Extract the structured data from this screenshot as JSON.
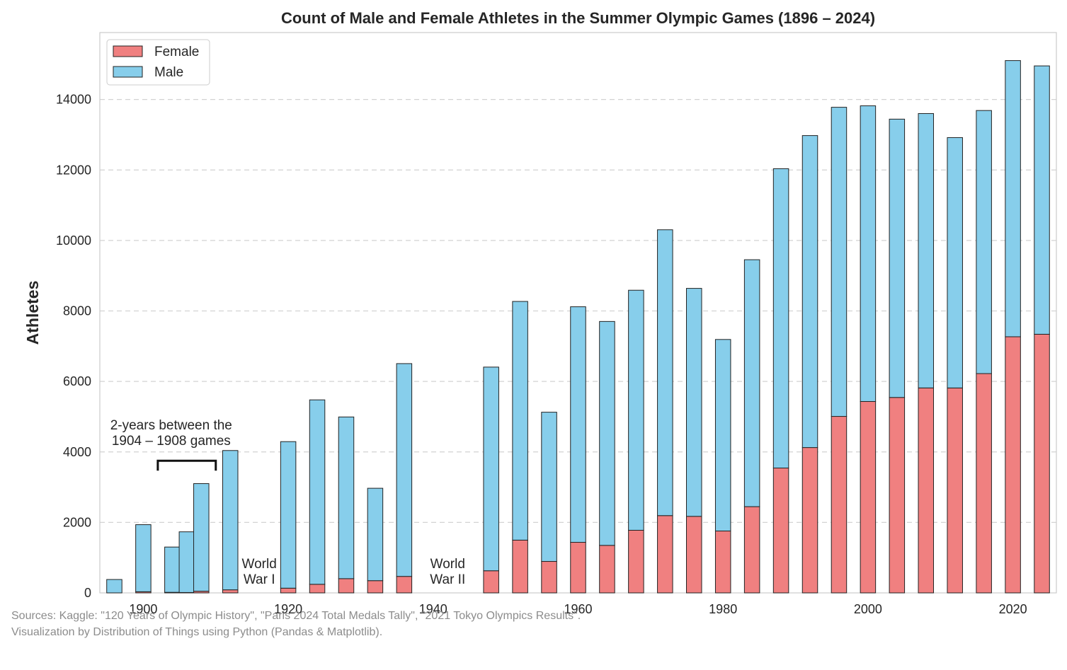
{
  "chart_data": {
    "type": "bar",
    "stacked": true,
    "title": "Count of Male and Female Athletes in the Summer Olympic Games (1896 – 2024)",
    "xlabel": "",
    "ylabel": "Athletes",
    "xlim": [
      1894,
      2026
    ],
    "ylim": [
      0,
      15900
    ],
    "xticks": [
      1900,
      1920,
      1940,
      1960,
      1980,
      2000,
      2020
    ],
    "yticks": [
      0,
      2000,
      4000,
      6000,
      8000,
      10000,
      12000,
      14000
    ],
    "grid": "horizontal-dashed",
    "legend_position": "top-left",
    "colors": {
      "Female": "#f08080",
      "Male": "#87ceeb",
      "edge": "#222222"
    },
    "x": [
      1896,
      1900,
      1904,
      1906,
      1908,
      1912,
      1920,
      1924,
      1928,
      1932,
      1936,
      1948,
      1952,
      1956,
      1960,
      1964,
      1968,
      1972,
      1976,
      1980,
      1984,
      1988,
      1992,
      1996,
      2000,
      2004,
      2008,
      2012,
      2016,
      2020,
      2024
    ],
    "series": [
      {
        "name": "Female",
        "values": [
          0,
          33,
          16,
          11,
          47,
          87,
          134,
          244,
          404,
          347,
          468,
          628,
          1497,
          893,
          1435,
          1348,
          1777,
          2193,
          2172,
          1756,
          2447,
          3543,
          4124,
          5008,
          5431,
          5546,
          5816,
          5815,
          6223,
          7268,
          7339
        ]
      },
      {
        "name": "Male",
        "values": [
          380,
          1903,
          1285,
          1722,
          3054,
          3953,
          4158,
          5233,
          4588,
          2622,
          6038,
          5779,
          6773,
          4234,
          6684,
          6354,
          6811,
          8111,
          6469,
          5435,
          7007,
          8494,
          8853,
          8772,
          8390,
          7897,
          7786,
          7105,
          7465,
          7837,
          7615
        ]
      }
    ],
    "annotations": [
      {
        "text_lines": [
          "2-years between the",
          "1904 – 1908 games"
        ],
        "bracket": [
          1902,
          1910
        ],
        "at_y": 3750
      },
      {
        "text_lines": [
          "World",
          "War I"
        ],
        "x": 1916
      },
      {
        "text_lines": [
          "World",
          "War II"
        ],
        "x": 1942
      }
    ]
  },
  "sources": {
    "line1": "Sources: Kaggle: \"120 Years of Olympic History\", \"Paris 2024 Total Medals Tally\", \"2021 Tokyo Olympics Results\".",
    "line2": "Visualization by Distribution of Things using Python (Pandas & Matplotlib)."
  }
}
